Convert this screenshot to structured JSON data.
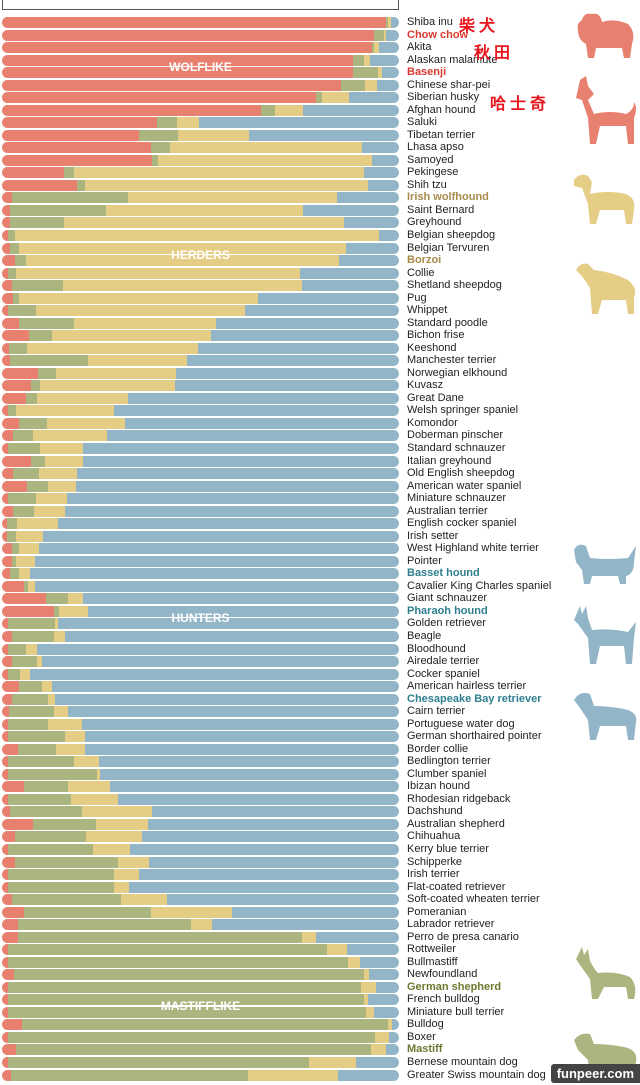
{
  "chart_data": {
    "type": "bar",
    "orientation": "horizontal-stacked-100",
    "series": [
      {
        "name": "Wolflike",
        "color": "#e8806f"
      },
      {
        "name": "Mastifflike",
        "color": "#aab57f"
      },
      {
        "name": "Herders",
        "color": "#e6cd85"
      },
      {
        "name": "Hunters",
        "color": "#92b6c7"
      }
    ],
    "group_labels": [
      {
        "label": "WOLFLIKE",
        "row": 4
      },
      {
        "label": "HERDERS",
        "row": 19
      },
      {
        "label": "HUNTERS",
        "row": 48
      },
      {
        "label": "MASTIFFLIKE",
        "row": 79
      }
    ],
    "highlight_colors": {
      "red": "#d93a2e",
      "tan": "#a88a4a",
      "teal": "#2e7f8f",
      "olive": "#6a7a2e"
    },
    "categories": [
      {
        "name": "Shiba inu",
        "values": [
          96.8,
          0.5,
          0.8,
          1.9
        ]
      },
      {
        "name": "Chow chow",
        "values": [
          93.7,
          2.4,
          0.6,
          3.3
        ],
        "hl": "red"
      },
      {
        "name": "Akita",
        "values": [
          93.2,
          0.5,
          1.2,
          5.1
        ]
      },
      {
        "name": "Alaskan malamute",
        "values": [
          88.4,
          2.8,
          1.6,
          7.2
        ]
      },
      {
        "name": "Basenji",
        "values": [
          88.4,
          6.2,
          1.2,
          4.2
        ],
        "hl": "red"
      },
      {
        "name": "Chinese shar-pei",
        "values": [
          85.4,
          6.0,
          3.1,
          5.5
        ]
      },
      {
        "name": "Siberian husky",
        "values": [
          79.0,
          1.6,
          6.8,
          12.6
        ]
      },
      {
        "name": "Afghan hound",
        "values": [
          65.2,
          3.6,
          7.0,
          24.2
        ]
      },
      {
        "name": "Saluki",
        "values": [
          39.0,
          5.1,
          5.4,
          50.5
        ]
      },
      {
        "name": "Tibetan terrier",
        "values": [
          34.6,
          9.8,
          17.7,
          37.9
        ]
      },
      {
        "name": "Lhasa apso",
        "values": [
          37.5,
          4.7,
          48.4,
          9.4
        ]
      },
      {
        "name": "Samoyed",
        "values": [
          37.9,
          1.4,
          54.0,
          6.7
        ]
      },
      {
        "name": "Pekingese",
        "values": [
          15.6,
          2.5,
          73.2,
          8.7
        ]
      },
      {
        "name": "Shih tzu",
        "values": [
          18.8,
          2.2,
          71.2,
          7.8
        ]
      },
      {
        "name": "Irish wolfhound",
        "values": [
          2.4,
          29.4,
          52.6,
          15.6
        ],
        "hl": "tan"
      },
      {
        "name": "Saint Bernard",
        "values": [
          2.1,
          24.2,
          49.6,
          24.1
        ]
      },
      {
        "name": "Greyhound",
        "values": [
          2.0,
          13.5,
          70.6,
          13.9
        ]
      },
      {
        "name": "Belgian sheepdog",
        "values": [
          1.5,
          1.7,
          91.7,
          5.1
        ]
      },
      {
        "name": "Belgian Tervuren",
        "values": [
          2.0,
          2.2,
          82.4,
          13.4
        ]
      },
      {
        "name": "Borzoi",
        "values": [
          3.2,
          2.8,
          78.8,
          15.2
        ],
        "hl": "tan"
      },
      {
        "name": "Collie",
        "values": [
          1.4,
          2.2,
          71.4,
          25.0
        ]
      },
      {
        "name": "Shetland sheepdog",
        "values": [
          2.4,
          12.9,
          60.3,
          24.4
        ]
      },
      {
        "name": "Pug",
        "values": [
          2.8,
          1.4,
          60.3,
          35.5
        ]
      },
      {
        "name": "Whippet",
        "values": [
          1.4,
          7.1,
          52.7,
          38.8
        ]
      },
      {
        "name": "Standard poodle",
        "values": [
          4.2,
          14.0,
          35.7,
          46.1
        ]
      },
      {
        "name": "Bichon frise",
        "values": [
          6.9,
          5.8,
          40.0,
          47.3
        ]
      },
      {
        "name": "Keeshond",
        "values": [
          1.8,
          4.6,
          43.1,
          50.5
        ]
      },
      {
        "name": "Manchester terrier",
        "values": [
          2.1,
          19.6,
          25.0,
          53.3
        ]
      },
      {
        "name": "Norwegian elkhound",
        "values": [
          9.0,
          4.7,
          30.1,
          56.2
        ]
      },
      {
        "name": "Kuvasz",
        "values": [
          7.3,
          2.3,
          34.0,
          56.4
        ]
      },
      {
        "name": "Great Dane",
        "values": [
          6.1,
          2.8,
          22.9,
          68.2
        ]
      },
      {
        "name": "Welsh springer spaniel",
        "values": [
          1.4,
          2.2,
          24.5,
          71.9
        ]
      },
      {
        "name": "Komondor",
        "values": [
          4.2,
          7.2,
          19.7,
          68.9
        ]
      },
      {
        "name": "Doberman pinscher",
        "values": [
          2.8,
          4.9,
          18.7,
          73.6
        ]
      },
      {
        "name": "Standard schnauzer",
        "values": [
          1.4,
          8.3,
          10.7,
          79.6
        ]
      },
      {
        "name": "Italian greyhound",
        "values": [
          7.2,
          3.6,
          9.6,
          79.6
        ]
      },
      {
        "name": "Old English sheepdog",
        "values": [
          2.8,
          6.4,
          9.6,
          81.2
        ]
      },
      {
        "name": "American water spaniel",
        "values": [
          6.3,
          5.3,
          7.1,
          81.3
        ]
      },
      {
        "name": "Miniature schnauzer",
        "values": [
          1.4,
          7.2,
          7.8,
          83.6
        ]
      },
      {
        "name": "Australian terrier",
        "values": [
          2.8,
          5.3,
          7.7,
          84.2
        ]
      },
      {
        "name": "English cocker spaniel",
        "values": [
          1.2,
          2.7,
          10.2,
          85.9
        ]
      },
      {
        "name": "Irish setter",
        "values": [
          1.2,
          2.4,
          6.8,
          89.6
        ]
      },
      {
        "name": "West Highland white terrier",
        "values": [
          2.6,
          1.8,
          4.8,
          90.8
        ]
      },
      {
        "name": "Pointer",
        "values": [
          2.6,
          0.9,
          4.8,
          91.7
        ]
      },
      {
        "name": "Basset hound",
        "values": [
          2.1,
          2.3,
          2.6,
          93.0
        ],
        "hl": "teal"
      },
      {
        "name": "Cavalier King Charles spaniel",
        "values": [
          5.6,
          1.0,
          1.7,
          91.7
        ]
      },
      {
        "name": "Giant schnauzer",
        "values": [
          11.0,
          5.7,
          3.7,
          79.6
        ]
      },
      {
        "name": "Pharaoh hound",
        "values": [
          13.1,
          1.3,
          7.2,
          78.4
        ],
        "hl": "teal"
      },
      {
        "name": "Golden retriever",
        "values": [
          1.4,
          11.9,
          0.9,
          85.8
        ]
      },
      {
        "name": "Beagle",
        "values": [
          2.4,
          10.6,
          2.9,
          84.1
        ]
      },
      {
        "name": "Bloodhound",
        "values": [
          1.4,
          4.6,
          2.8,
          91.2
        ]
      },
      {
        "name": "Airedale terrier",
        "values": [
          2.4,
          6.3,
          1.3,
          90.0
        ]
      },
      {
        "name": "Cocker spaniel",
        "values": [
          1.5,
          3.1,
          2.4,
          93.0
        ]
      },
      {
        "name": "American hairless terrier",
        "values": [
          4.2,
          6.0,
          2.3,
          87.5
        ]
      },
      {
        "name": "Chesapeake Bay retriever",
        "values": [
          2.5,
          9.0,
          1.9,
          86.6
        ],
        "hl": "teal"
      },
      {
        "name": "Cairn terrier",
        "values": [
          1.8,
          11.3,
          3.5,
          83.4
        ]
      },
      {
        "name": "Portuguese water dog",
        "values": [
          1.4,
          10.2,
          8.5,
          79.9
        ]
      },
      {
        "name": "German shorthaired pointer",
        "values": [
          1.4,
          14.5,
          4.9,
          79.2
        ]
      },
      {
        "name": "Border collie",
        "values": [
          4.0,
          9.6,
          7.4,
          79.0
        ]
      },
      {
        "name": "Bedlington terrier",
        "values": [
          1.5,
          16.7,
          6.2,
          75.6
        ]
      },
      {
        "name": "Clumber spaniel",
        "values": [
          1.4,
          22.5,
          0.7,
          75.4
        ]
      },
      {
        "name": "Ibizan hound",
        "values": [
          5.6,
          11.0,
          10.5,
          72.9
        ]
      },
      {
        "name": "Rhodesian ridgeback",
        "values": [
          1.5,
          15.9,
          11.9,
          70.7
        ]
      },
      {
        "name": "Dachshund",
        "values": [
          2.1,
          18.0,
          17.7,
          62.2
        ]
      },
      {
        "name": "Australian shepherd",
        "values": [
          7.7,
          16.1,
          13.0,
          63.2
        ]
      },
      {
        "name": "Chihuahua",
        "values": [
          3.2,
          18.0,
          14.0,
          64.8
        ]
      },
      {
        "name": "Kerry blue terrier",
        "values": [
          1.4,
          21.6,
          9.2,
          67.8
        ]
      },
      {
        "name": "Schipperke",
        "values": [
          3.3,
          25.9,
          7.8,
          63.0
        ]
      },
      {
        "name": "Irish terrier",
        "values": [
          1.4,
          26.8,
          6.2,
          65.6
        ]
      },
      {
        "name": "Flat-coated retriever",
        "values": [
          1.4,
          26.8,
          3.7,
          68.1
        ]
      },
      {
        "name": "Soft-coated wheaten terrier",
        "values": [
          2.4,
          27.7,
          11.5,
          58.4
        ]
      },
      {
        "name": "Pomeranian",
        "values": [
          5.6,
          31.9,
          20.4,
          42.1
        ]
      },
      {
        "name": "Labrador retriever",
        "values": [
          4.0,
          43.6,
          5.2,
          47.2
        ]
      },
      {
        "name": "Perro de presa canario",
        "values": [
          4.1,
          71.5,
          3.6,
          20.8
        ]
      },
      {
        "name": "Rottweiler",
        "values": [
          1.4,
          80.4,
          5.0,
          13.2
        ]
      },
      {
        "name": "Bullmastiff",
        "values": [
          1.4,
          85.7,
          3.2,
          9.7
        ]
      },
      {
        "name": "Newfoundland",
        "values": [
          3.0,
          88.2,
          1.3,
          7.5
        ]
      },
      {
        "name": "German shepherd",
        "values": [
          1.4,
          89.1,
          3.8,
          5.7
        ],
        "hl": "olive"
      },
      {
        "name": "French bulldog",
        "values": [
          1.4,
          89.8,
          1.1,
          7.7
        ]
      },
      {
        "name": "Miniature bull terrier",
        "values": [
          1.5,
          90.3,
          2.0,
          6.2
        ]
      },
      {
        "name": "Bulldog",
        "values": [
          5.1,
          92.1,
          1.0,
          1.8
        ]
      },
      {
        "name": "Boxer",
        "values": [
          1.4,
          92.6,
          3.6,
          2.4
        ]
      },
      {
        "name": "Mastiff",
        "values": [
          3.6,
          89.4,
          3.7,
          3.3
        ],
        "hl": "olive"
      },
      {
        "name": "Bernese mountain dog",
        "values": [
          1.4,
          76.0,
          11.8,
          10.8
        ]
      },
      {
        "name": "Greater Swiss mountain dog",
        "values": [
          2.3,
          59.7,
          22.7,
          15.3
        ]
      }
    ]
  },
  "annotations": {
    "shiba_cn": "柴犬",
    "akita_cn": "秋田",
    "husky_cn": "哈士奇"
  },
  "watermark": "funpeer.com"
}
